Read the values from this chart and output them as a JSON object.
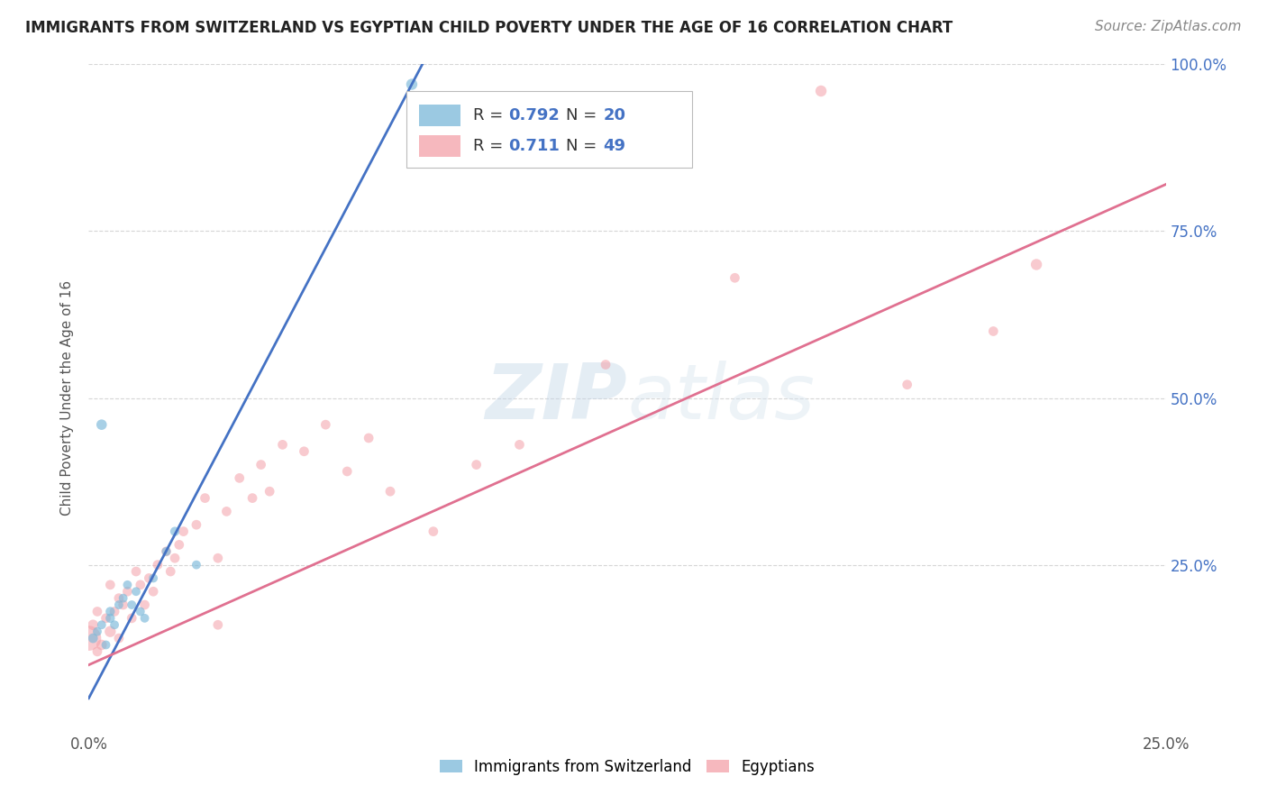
{
  "title": "IMMIGRANTS FROM SWITZERLAND VS EGYPTIAN CHILD POVERTY UNDER THE AGE OF 16 CORRELATION CHART",
  "source": "Source: ZipAtlas.com",
  "ylabel": "Child Poverty Under the Age of 16",
  "xlim": [
    0.0,
    0.25
  ],
  "ylim": [
    0.0,
    1.0
  ],
  "xticks": [
    0.0,
    0.05,
    0.1,
    0.15,
    0.2,
    0.25
  ],
  "yticks": [
    0.25,
    0.5,
    0.75,
    1.0
  ],
  "xticklabels": [
    "0.0%",
    "",
    "",
    "",
    "",
    "25.0%"
  ],
  "yticklabels": [
    "25.0%",
    "50.0%",
    "75.0%",
    "100.0%"
  ],
  "background_color": "#ffffff",
  "grid_color": "#cccccc",
  "legend1_label": "Immigrants from Switzerland",
  "legend2_label": "Egyptians",
  "r1": 0.792,
  "n1": 20,
  "r2": 0.711,
  "n2": 49,
  "color_swiss": "#7ab8d9",
  "color_egypt": "#f4a0a8",
  "line_color_swiss": "#4472c4",
  "line_color_egypt": "#e07090",
  "swiss_x": [
    0.001,
    0.002,
    0.003,
    0.004,
    0.005,
    0.005,
    0.006,
    0.007,
    0.008,
    0.009,
    0.01,
    0.011,
    0.012,
    0.013,
    0.015,
    0.018,
    0.02,
    0.025,
    0.003,
    0.075
  ],
  "swiss_y": [
    0.14,
    0.15,
    0.16,
    0.13,
    0.17,
    0.18,
    0.16,
    0.19,
    0.2,
    0.22,
    0.19,
    0.21,
    0.18,
    0.17,
    0.23,
    0.27,
    0.3,
    0.25,
    0.46,
    0.97
  ],
  "egypt_x": [
    0.0,
    0.001,
    0.002,
    0.002,
    0.003,
    0.004,
    0.005,
    0.005,
    0.006,
    0.007,
    0.007,
    0.008,
    0.009,
    0.01,
    0.011,
    0.012,
    0.013,
    0.014,
    0.015,
    0.016,
    0.018,
    0.019,
    0.02,
    0.021,
    0.022,
    0.025,
    0.027,
    0.03,
    0.032,
    0.035,
    0.038,
    0.04,
    0.042,
    0.045,
    0.05,
    0.055,
    0.06,
    0.065,
    0.07,
    0.08,
    0.09,
    0.1,
    0.12,
    0.15,
    0.17,
    0.19,
    0.21,
    0.22,
    0.03
  ],
  "egypt_y": [
    0.14,
    0.16,
    0.12,
    0.18,
    0.13,
    0.17,
    0.15,
    0.22,
    0.18,
    0.14,
    0.2,
    0.19,
    0.21,
    0.17,
    0.24,
    0.22,
    0.19,
    0.23,
    0.21,
    0.25,
    0.27,
    0.24,
    0.26,
    0.28,
    0.3,
    0.31,
    0.35,
    0.26,
    0.33,
    0.38,
    0.35,
    0.4,
    0.36,
    0.43,
    0.42,
    0.46,
    0.39,
    0.44,
    0.36,
    0.3,
    0.4,
    0.43,
    0.55,
    0.68,
    0.96,
    0.52,
    0.6,
    0.7,
    0.16
  ],
  "swiss_sizes": [
    60,
    50,
    50,
    50,
    55,
    55,
    50,
    50,
    50,
    50,
    50,
    50,
    50,
    50,
    50,
    50,
    55,
    50,
    70,
    80
  ],
  "egypt_sizes": [
    400,
    70,
    60,
    60,
    70,
    60,
    80,
    60,
    60,
    60,
    60,
    60,
    60,
    60,
    60,
    60,
    60,
    60,
    60,
    60,
    60,
    60,
    60,
    60,
    60,
    60,
    60,
    60,
    60,
    60,
    60,
    60,
    60,
    60,
    60,
    60,
    60,
    60,
    60,
    60,
    60,
    60,
    60,
    60,
    80,
    60,
    60,
    80,
    60
  ]
}
